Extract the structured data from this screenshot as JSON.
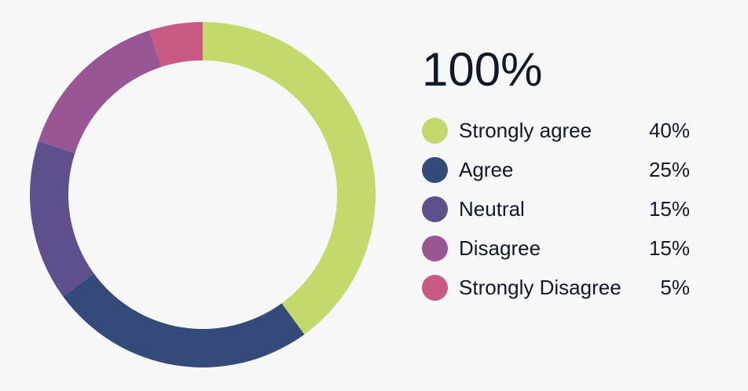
{
  "chart_data": {
    "type": "pie",
    "variant": "donut",
    "total_label": "100%",
    "categories": [
      "Strongly agree",
      "Agree",
      "Neutral",
      "Disagree",
      "Strongly Disagree"
    ],
    "values": [
      40,
      25,
      15,
      15,
      5
    ],
    "value_labels": [
      "40%",
      "25%",
      "15%",
      "15%",
      "5%"
    ],
    "colors": [
      "#c2d96c",
      "#344a78",
      "#5f4f8c",
      "#985694",
      "#c95a86"
    ],
    "legend_position": "right"
  },
  "legend": {
    "items": [
      {
        "label": "Strongly agree",
        "pct": "40%",
        "color": "#c2d96c"
      },
      {
        "label": "Agree",
        "pct": "25%",
        "color": "#344a78"
      },
      {
        "label": "Neutral",
        "pct": "15%",
        "color": "#5f4f8c"
      },
      {
        "label": "Disagree",
        "pct": "15%",
        "color": "#985694"
      },
      {
        "label": "Strongly Disagree",
        "pct": "5%",
        "color": "#c95a86"
      }
    ]
  }
}
